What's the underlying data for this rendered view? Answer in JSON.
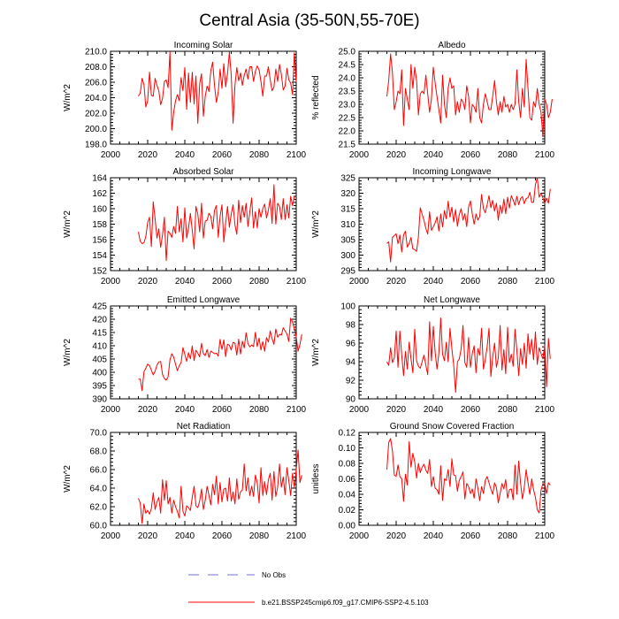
{
  "figure": {
    "title": "Central Asia (35-50N,55-70E)",
    "legend": {
      "obs_label": "No Obs",
      "obs_color": "#6f6fd8",
      "model_label": "b.e21.BSSP245cmip6.f09_g17.CMIP6-SSP2-4.5.103",
      "model_color": "#ff0000"
    }
  },
  "chart_data": [
    {
      "type": "line",
      "title": "Incoming Solar",
      "ylabel": "W/m^2",
      "xlim": [
        2000,
        2100
      ],
      "ylim": [
        198,
        210
      ],
      "xticks": [
        2000,
        2020,
        2040,
        2060,
        2080,
        2100
      ],
      "yticks": [
        "198.0",
        "200.0",
        "202.0",
        "204.0",
        "206.0",
        "208.0",
        "210.0"
      ],
      "x_start": 2015,
      "series": [
        {
          "name": "b.e21.BSSP245cmip6.f09_g17.CMIP6-SSP2-4.5.103",
          "values": [
            204.2,
            204.6,
            206.5,
            205.7,
            202.8,
            203.6,
            207.3,
            204.3,
            204.2,
            206.5,
            205.6,
            204.9,
            203.1,
            203.9,
            206.1,
            206.3,
            205.3,
            209.9,
            199.8,
            202.1,
            203.6,
            204.4,
            203.6,
            206.6,
            204.9,
            207.9,
            202.5,
            207.2,
            203.4,
            207.3,
            203.2,
            206.8,
            200.7,
            205.8,
            207.1,
            201.6,
            204.2,
            205.5,
            204.8,
            207.5,
            208.6,
            205.6,
            203.4,
            204.7,
            207.7,
            205.2,
            208.4,
            205.4,
            207.1,
            209.9,
            206.9,
            200.7,
            205.6,
            207.9,
            206.2,
            207.2,
            205.6,
            206.9,
            207.7,
            206.4,
            208.0,
            208.0,
            206.1,
            207.4,
            208.1,
            207.6,
            206.1,
            204.2,
            206.8,
            206.8,
            208.0,
            206.3,
            204.9,
            205.4,
            207.7,
            206.1,
            208.3,
            207.0,
            205.0,
            205.5,
            207.8,
            206.3,
            205.9,
            204.4,
            209.8,
            206.0
          ]
        }
      ]
    },
    {
      "type": "line",
      "title": "Albedo",
      "ylabel": "% reflected",
      "xlim": [
        2000,
        2100
      ],
      "ylim": [
        21.5,
        25
      ],
      "xticks": [
        2000,
        2020,
        2040,
        2060,
        2080,
        2100
      ],
      "yticks": [
        "21.5",
        "22.0",
        "22.5",
        "23.0",
        "23.5",
        "24.0",
        "24.5",
        "25.0"
      ],
      "x_start": 2015,
      "series": [
        {
          "name": "b.e21.BSSP245cmip6.f09_g17.CMIP6-SSP2-4.5.103",
          "values": [
            23.3,
            23.9,
            24.9,
            24.2,
            22.8,
            23.1,
            23.5,
            23.4,
            24.3,
            22.2,
            23.6,
            23.2,
            22.8,
            24.5,
            23.6,
            24.4,
            23.9,
            22.6,
            23.4,
            23.5,
            23.4,
            24.1,
            23.4,
            22.7,
            23.2,
            24.4,
            23.8,
            23.3,
            22.8,
            22.3,
            24.1,
            23.0,
            22.5,
            23.6,
            24.0,
            23.6,
            23.7,
            22.6,
            23.1,
            22.7,
            23.2,
            23.1,
            22.8,
            23.7,
            23.3,
            22.3,
            23.0,
            22.9,
            22.7,
            23.6,
            22.5,
            22.3,
            23.0,
            23.4,
            23.1,
            22.8,
            22.8,
            23.3,
            23.9,
            23.1,
            22.6,
            23.1,
            22.7,
            23.3,
            22.9,
            23.0,
            22.7,
            23.0,
            22.8,
            23.0,
            24.3,
            23.1,
            22.5,
            23.6,
            22.9,
            24.7,
            23.6,
            22.5,
            22.4,
            23.1,
            22.9,
            23.6,
            23.0,
            22.7,
            21.8,
            23.2,
            23.0,
            22.5,
            22.7,
            23.2
          ]
        }
      ]
    },
    {
      "type": "line",
      "title": "Absorbed Solar",
      "ylabel": "W/m^2",
      "xlim": [
        2000,
        2100
      ],
      "ylim": [
        152,
        164
      ],
      "xticks": [
        2000,
        2020,
        2040,
        2060,
        2080,
        2100
      ],
      "yticks": [
        "152",
        "154",
        "156",
        "158",
        "160",
        "162",
        "164"
      ],
      "x_start": 2015,
      "series": [
        {
          "name": "b.e21.BSSP245cmip6.f09_g17.CMIP6-SSP2-4.5.103",
          "values": [
            157.0,
            155.8,
            155.5,
            155.6,
            156.4,
            158.2,
            158.9,
            155.1,
            160.9,
            158.7,
            156.2,
            157.4,
            155.0,
            156.6,
            158.9,
            153.3,
            157.1,
            156.8,
            156.3,
            157.7,
            156.8,
            160.3,
            157.0,
            158.7,
            155.7,
            160.1,
            156.2,
            157.5,
            159.4,
            157.2,
            154.8,
            160.3,
            159.3,
            157.0,
            160.7,
            156.2,
            158.4,
            158.5,
            159.4,
            159.0,
            157.4,
            159.8,
            160.4,
            156.3,
            159.0,
            160.5,
            155.7,
            158.1,
            160.3,
            157.6,
            159.3,
            160.5,
            157.9,
            156.7,
            161.1,
            158.2,
            160.4,
            158.9,
            160.7,
            157.7,
            159.6,
            161.4,
            157.5,
            159.6,
            157.5,
            160.0,
            158.9,
            160.0,
            160.6,
            158.8,
            159.8,
            161.3,
            158.1,
            163.1,
            158.0,
            160.7,
            160.3,
            158.6,
            161.3,
            158.6,
            160.5,
            158.8,
            161.6,
            160.4,
            161.6
          ]
        }
      ]
    },
    {
      "type": "line",
      "title": "Incoming Longwave",
      "ylabel": "W/m^2",
      "xlim": [
        2000,
        2100
      ],
      "ylim": [
        295,
        325
      ],
      "xticks": [
        2000,
        2020,
        2040,
        2060,
        2080,
        2100
      ],
      "yticks": [
        "295",
        "300",
        "305",
        "310",
        "315",
        "320",
        "325"
      ],
      "x_start": 2015,
      "series": [
        {
          "name": "b.e21.BSSP245cmip6.f09_g17.CMIP6-SSP2-4.5.103",
          "values": [
            303.8,
            304.3,
            297.8,
            305.7,
            306.3,
            306.9,
            303.7,
            306.5,
            301.0,
            306.6,
            307.7,
            302.6,
            303.7,
            305.7,
            302.0,
            301.8,
            301.2,
            306.0,
            315.3,
            313.2,
            311.2,
            308.6,
            306.8,
            314.0,
            308.0,
            309.2,
            310.4,
            312.4,
            307.8,
            313.3,
            309.1,
            314.4,
            311.7,
            317.4,
            312.3,
            315.5,
            310.7,
            314.7,
            309.3,
            313.1,
            315.0,
            311.3,
            313.4,
            309.2,
            315.6,
            317.5,
            313.3,
            310.0,
            313.3,
            311.3,
            312.5,
            319.6,
            315.0,
            313.7,
            316.3,
            319.2,
            315.3,
            317.7,
            314.2,
            316.8,
            311.3,
            316.1,
            313.5,
            318.1,
            313.4,
            318.7,
            315.2,
            319.2,
            317.8,
            316.1,
            319.0,
            316.3,
            318.3,
            318.9,
            316.6,
            318.3,
            318.5,
            320.3,
            317.0,
            317.1,
            322.8,
            325.0,
            318.7,
            320.0,
            318.5,
            316.8,
            318.4,
            316.8,
            321.4
          ]
        }
      ]
    },
    {
      "type": "line",
      "title": "Emitted Longwave",
      "ylabel": "W/m^2",
      "xlim": [
        2000,
        2100
      ],
      "ylim": [
        390,
        425
      ],
      "xticks": [
        2000,
        2020,
        2040,
        2060,
        2080,
        2100
      ],
      "yticks": [
        "390",
        "395",
        "400",
        "405",
        "410",
        "415",
        "420",
        "425"
      ],
      "x_start": 2015,
      "series": [
        {
          "name": "b.e21.BSSP245cmip6.f09_g17.CMIP6-SSP2-4.5.103",
          "values": [
            397.4,
            397.4,
            393.1,
            400.2,
            401.5,
            403.1,
            402.5,
            400.8,
            399.0,
            400.4,
            402.7,
            403.9,
            404.1,
            399.2,
            397.7,
            397.0,
            398.3,
            404.7,
            407.0,
            405.7,
            403.1,
            400.6,
            402.5,
            403.6,
            409.3,
            406.8,
            404.1,
            407.4,
            405.1,
            409.9,
            404.4,
            408.3,
            407.2,
            405.8,
            410.9,
            407.0,
            406.3,
            408.6,
            405.6,
            408.0,
            407.5,
            407.0,
            407.2,
            406.1,
            412.4,
            408.6,
            412.2,
            405.9,
            410.6,
            410.2,
            408.4,
            411.3,
            410.9,
            406.5,
            412.5,
            406.9,
            411.7,
            409.2,
            414.9,
            410.8,
            409.6,
            410.3,
            409.7,
            415.1,
            409.7,
            412.9,
            408.4,
            411.6,
            407.9,
            413.1,
            411.4,
            415.6,
            412.7,
            410.5,
            416.3,
            413.2,
            414.3,
            414.0,
            416.8,
            415.6,
            414.4,
            411.6,
            420.4,
            418.9,
            416.3,
            413.4,
            407.9,
            410.5,
            414.3
          ]
        }
      ]
    },
    {
      "type": "line",
      "title": "Net Longwave",
      "ylabel": "W/m^2",
      "xlim": [
        2000,
        2100
      ],
      "ylim": [
        90,
        100
      ],
      "xticks": [
        2000,
        2020,
        2040,
        2060,
        2080,
        2100
      ],
      "yticks": [
        "90",
        "92",
        "94",
        "96",
        "98",
        "100"
      ],
      "x_start": 2015,
      "series": [
        {
          "name": "b.e21.BSSP245cmip6.f09_g17.CMIP6-SSP2-4.5.103",
          "values": [
            94.0,
            93.6,
            95.5,
            93.9,
            94.4,
            97.3,
            93.4,
            97.3,
            94.7,
            92.5,
            95.1,
            93.2,
            96.1,
            94.3,
            92.8,
            97.5,
            94.1,
            93.5,
            93.3,
            94.0,
            94.7,
            93.6,
            92.6,
            98.3,
            94.1,
            97.8,
            95.0,
            93.2,
            94.9,
            98.7,
            94.8,
            94.1,
            96.1,
            94.0,
            97.6,
            95.4,
            93.6,
            90.7,
            94.0,
            94.3,
            95.4,
            97.9,
            93.9,
            93.4,
            96.6,
            93.4,
            94.9,
            95.7,
            92.8,
            95.4,
            94.7,
            97.6,
            93.2,
            94.2,
            95.6,
            97.6,
            92.4,
            94.5,
            96.0,
            93.4,
            94.4,
            97.9,
            93.1,
            95.3,
            92.7,
            97.7,
            93.9,
            94.8,
            93.5,
            97.5,
            95.2,
            92.5,
            95.4,
            93.7,
            96.0,
            93.3,
            97.0,
            94.8,
            96.4,
            94.2,
            97.2,
            93.7,
            95.5,
            94.9,
            94.3,
            95.7,
            91.3,
            96.5,
            94.3
          ]
        }
      ]
    },
    {
      "type": "line",
      "title": "Net Radiation",
      "ylabel": "W/m^2",
      "xlim": [
        2000,
        2100
      ],
      "ylim": [
        60,
        70
      ],
      "xticks": [
        2000,
        2020,
        2040,
        2060,
        2080,
        2100
      ],
      "yticks": [
        "60.0",
        "62.0",
        "64.0",
        "66.0",
        "68.0",
        "70.0"
      ],
      "x_start": 2015,
      "series": [
        {
          "name": "b.e21.BSSP245cmip6.f09_g17.CMIP6-SSP2-4.5.103",
          "values": [
            62.9,
            62.4,
            60.2,
            62.3,
            61.3,
            61.6,
            61.2,
            61.8,
            63.5,
            61.7,
            62.5,
            63.0,
            61.3,
            64.9,
            62.7,
            64.8,
            62.3,
            63.0,
            61.3,
            62.7,
            62.0,
            61.5,
            60.8,
            64.2,
            61.5,
            61.0,
            62.1,
            61.9,
            61.6,
            63.0,
            64.2,
            62.1,
            61.9,
            62.6,
            63.9,
            61.7,
            62.7,
            64.2,
            63.2,
            62.2,
            64.4,
            63.3,
            65.3,
            62.3,
            64.6,
            62.5,
            63.9,
            64.0,
            62.6,
            65.1,
            62.6,
            63.6,
            62.3,
            65.0,
            62.8,
            63.6,
            63.8,
            66.6,
            63.7,
            65.1,
            63.2,
            64.2,
            63.1,
            65.4,
            64.6,
            62.4,
            66.2,
            63.2,
            64.7,
            63.3,
            64.9,
            65.6,
            62.7,
            65.8,
            63.1,
            64.1,
            66.6,
            64.1,
            65.2,
            63.3,
            66.2,
            64.8,
            63.2,
            65.6,
            64.1,
            66.0,
            68.1,
            64.6,
            65.4
          ]
        }
      ]
    },
    {
      "type": "line",
      "title": "Ground Snow Covered Fraction",
      "ylabel": "unitless",
      "xlim": [
        2000,
        2100
      ],
      "ylim": [
        0,
        0.12
      ],
      "xticks": [
        2000,
        2020,
        2040,
        2060,
        2080,
        2100
      ],
      "yticks": [
        "0.00",
        "0.02",
        "0.04",
        "0.06",
        "0.08",
        "0.10",
        "0.12"
      ],
      "x_start": 2015,
      "series": [
        {
          "name": "b.e21.BSSP245cmip6.f09_g17.CMIP6-SSP2-4.5.103",
          "values": [
            0.072,
            0.107,
            0.112,
            0.096,
            0.065,
            0.063,
            0.078,
            0.063,
            0.06,
            0.031,
            0.066,
            0.052,
            0.108,
            0.075,
            0.093,
            0.082,
            0.061,
            0.08,
            0.068,
            0.075,
            0.079,
            0.071,
            0.067,
            0.085,
            0.05,
            0.063,
            0.048,
            0.046,
            0.04,
            0.077,
            0.032,
            0.06,
            0.058,
            0.072,
            0.05,
            0.086,
            0.065,
            0.064,
            0.044,
            0.058,
            0.063,
            0.069,
            0.034,
            0.054,
            0.05,
            0.041,
            0.047,
            0.035,
            0.06,
            0.048,
            0.032,
            0.05,
            0.041,
            0.058,
            0.063,
            0.055,
            0.047,
            0.04,
            0.055,
            0.049,
            0.029,
            0.041,
            0.054,
            0.047,
            0.059,
            0.035,
            0.046,
            0.047,
            0.033,
            0.078,
            0.04,
            0.083,
            0.054,
            0.034,
            0.049,
            0.072,
            0.055,
            0.04,
            0.06,
            0.046,
            0.036,
            0.02,
            0.016,
            0.045,
            0.054,
            0.053,
            0.041,
            0.055,
            0.052
          ]
        }
      ]
    }
  ]
}
